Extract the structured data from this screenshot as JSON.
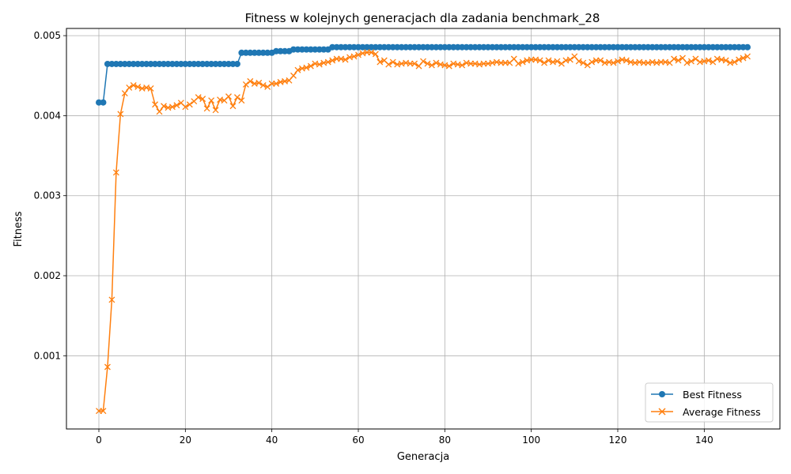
{
  "chart_data": {
    "type": "line",
    "title": "Fitness w kolejnych generacjach dla zadania benchmark_28",
    "xlabel": "Generacja",
    "ylabel": "Fitness",
    "xlim": [
      -7.5,
      157.5
    ],
    "ylim": [
      8.5e-05,
      0.00509
    ],
    "xticks": [
      0,
      20,
      40,
      60,
      80,
      100,
      120,
      140
    ],
    "yticks": [
      0.001,
      0.002,
      0.003,
      0.004,
      0.005
    ],
    "ytick_labels": [
      "0.001",
      "0.002",
      "0.003",
      "0.004",
      "0.005"
    ],
    "grid": true,
    "legend_position": "lower-right",
    "series": [
      {
        "name": "Best Fitness",
        "color": "#1f77b4",
        "marker": "circle",
        "steps": [
          [
            0,
            0.004165
          ],
          [
            2,
            0.004646
          ],
          [
            33,
            0.004786
          ],
          [
            41,
            0.004806
          ],
          [
            45,
            0.004827
          ],
          [
            54,
            0.004856
          ]
        ],
        "last_x": 150
      },
      {
        "name": "Average Fitness",
        "color": "#ff7f0e",
        "marker": "x",
        "values": [
          0.00031,
          0.00031,
          0.00086,
          0.0017,
          0.00329,
          0.00402,
          0.00428,
          0.00435,
          0.00438,
          0.00436,
          0.00434,
          0.00435,
          0.00434,
          0.00414,
          0.00405,
          0.00412,
          0.0041,
          0.00411,
          0.00413,
          0.00416,
          0.00411,
          0.00414,
          0.00418,
          0.00423,
          0.00421,
          0.00409,
          0.00419,
          0.00407,
          0.0042,
          0.00419,
          0.00424,
          0.00412,
          0.00423,
          0.00419,
          0.00439,
          0.00443,
          0.0044,
          0.00441,
          0.00438,
          0.00436,
          0.0044,
          0.0044,
          0.00442,
          0.00443,
          0.00444,
          0.0045,
          0.00457,
          0.00459,
          0.0046,
          0.00462,
          0.00465,
          0.00464,
          0.00466,
          0.00467,
          0.00469,
          0.00471,
          0.00471,
          0.0047,
          0.00473,
          0.00474,
          0.00476,
          0.00478,
          0.00479,
          0.00479,
          0.00477,
          0.00467,
          0.00469,
          0.00464,
          0.00467,
          0.00464,
          0.00465,
          0.00466,
          0.00465,
          0.00465,
          0.00462,
          0.00468,
          0.00465,
          0.00463,
          0.00466,
          0.00464,
          0.00463,
          0.00462,
          0.00465,
          0.00464,
          0.00463,
          0.00466,
          0.00465,
          0.00465,
          0.00464,
          0.00465,
          0.00465,
          0.00466,
          0.00467,
          0.00466,
          0.00466,
          0.00466,
          0.00471,
          0.00465,
          0.00467,
          0.00469,
          0.0047,
          0.0047,
          0.00469,
          0.00466,
          0.00469,
          0.00467,
          0.00468,
          0.00465,
          0.00469,
          0.0047,
          0.00474,
          0.00468,
          0.00466,
          0.00463,
          0.00467,
          0.00469,
          0.00469,
          0.00466,
          0.00467,
          0.00466,
          0.00468,
          0.0047,
          0.00469,
          0.00467,
          0.00466,
          0.00467,
          0.00466,
          0.00466,
          0.00467,
          0.00466,
          0.00467,
          0.00467,
          0.00466,
          0.00471,
          0.00469,
          0.00472,
          0.00466,
          0.00468,
          0.00471,
          0.00467,
          0.00468,
          0.00469,
          0.00467,
          0.00471,
          0.0047,
          0.00469,
          0.00466,
          0.00467,
          0.0047,
          0.00472,
          0.00474
        ]
      }
    ]
  }
}
